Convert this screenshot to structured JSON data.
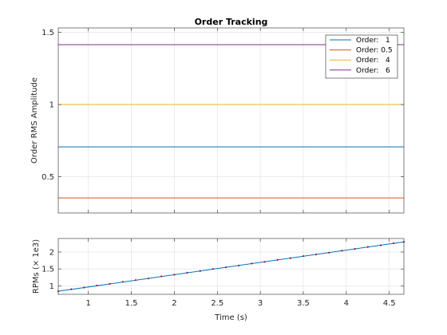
{
  "chart_data": [
    {
      "type": "line",
      "title": "Order Tracking",
      "xlabel": "",
      "ylabel": "Order RMS Amplitude",
      "xlim": [
        0.65,
        4.67
      ],
      "ylim": [
        0.25,
        1.53
      ],
      "xticks": [
        1,
        1.5,
        2,
        2.5,
        3,
        3.5,
        4,
        4.5
      ],
      "yticks": [
        0.5,
        1,
        1.5
      ],
      "ytick_labels": [
        "0.5",
        "1",
        "1.5"
      ],
      "grid": true,
      "legend_position": "top-right",
      "series": [
        {
          "name": "Order:   1",
          "color": "#0072BD",
          "x": [
            0.65,
            4.67
          ],
          "values": [
            0.707,
            0.707
          ]
        },
        {
          "name": "Order: 0.5",
          "color": "#D95319",
          "x": [
            0.65,
            4.67
          ],
          "values": [
            0.354,
            0.354
          ]
        },
        {
          "name": "Order:   4",
          "color": "#EDB120",
          "x": [
            0.65,
            4.67
          ],
          "values": [
            1.0,
            1.0
          ]
        },
        {
          "name": "Order:   6",
          "color": "#7E2F8E",
          "x": [
            0.65,
            4.67
          ],
          "values": [
            1.414,
            1.414
          ]
        }
      ]
    },
    {
      "type": "line",
      "title": "",
      "xlabel": "Time (s)",
      "ylabel": "RPMs (× 1e3)",
      "xlim": [
        0.65,
        4.67
      ],
      "ylim": [
        0.75,
        2.4
      ],
      "xticks": [
        1,
        1.5,
        2,
        2.5,
        3,
        3.5,
        4,
        4.5
      ],
      "xtick_labels": [
        "1",
        "1.5",
        "2",
        "2.5",
        "3",
        "3.5",
        "4",
        "4.5"
      ],
      "yticks": [
        1,
        1.5,
        2
      ],
      "ytick_labels": [
        "1",
        "1.5",
        "2"
      ],
      "grid": true,
      "series": [
        {
          "color": "#0072BD",
          "x": [
            0.65,
            4.67
          ],
          "values": [
            0.84,
            2.3
          ]
        }
      ],
      "markers": {
        "color": "#A2142F",
        "x": [
          0.65,
          0.8,
          0.95,
          1.1,
          1.25,
          1.4,
          1.55,
          1.7,
          1.85,
          2.0,
          2.15,
          2.3,
          2.45,
          2.6,
          2.75,
          2.9,
          3.05,
          3.2,
          3.35,
          3.5,
          3.65,
          3.8,
          3.95,
          4.1,
          4.25,
          4.4,
          4.55,
          4.67
        ],
        "values": [
          0.84,
          0.9,
          0.95,
          1.01,
          1.06,
          1.12,
          1.17,
          1.22,
          1.28,
          1.33,
          1.39,
          1.44,
          1.5,
          1.55,
          1.6,
          1.66,
          1.71,
          1.77,
          1.82,
          1.88,
          1.93,
          1.98,
          2.04,
          2.09,
          2.15,
          2.2,
          2.26,
          2.3
        ]
      }
    }
  ]
}
